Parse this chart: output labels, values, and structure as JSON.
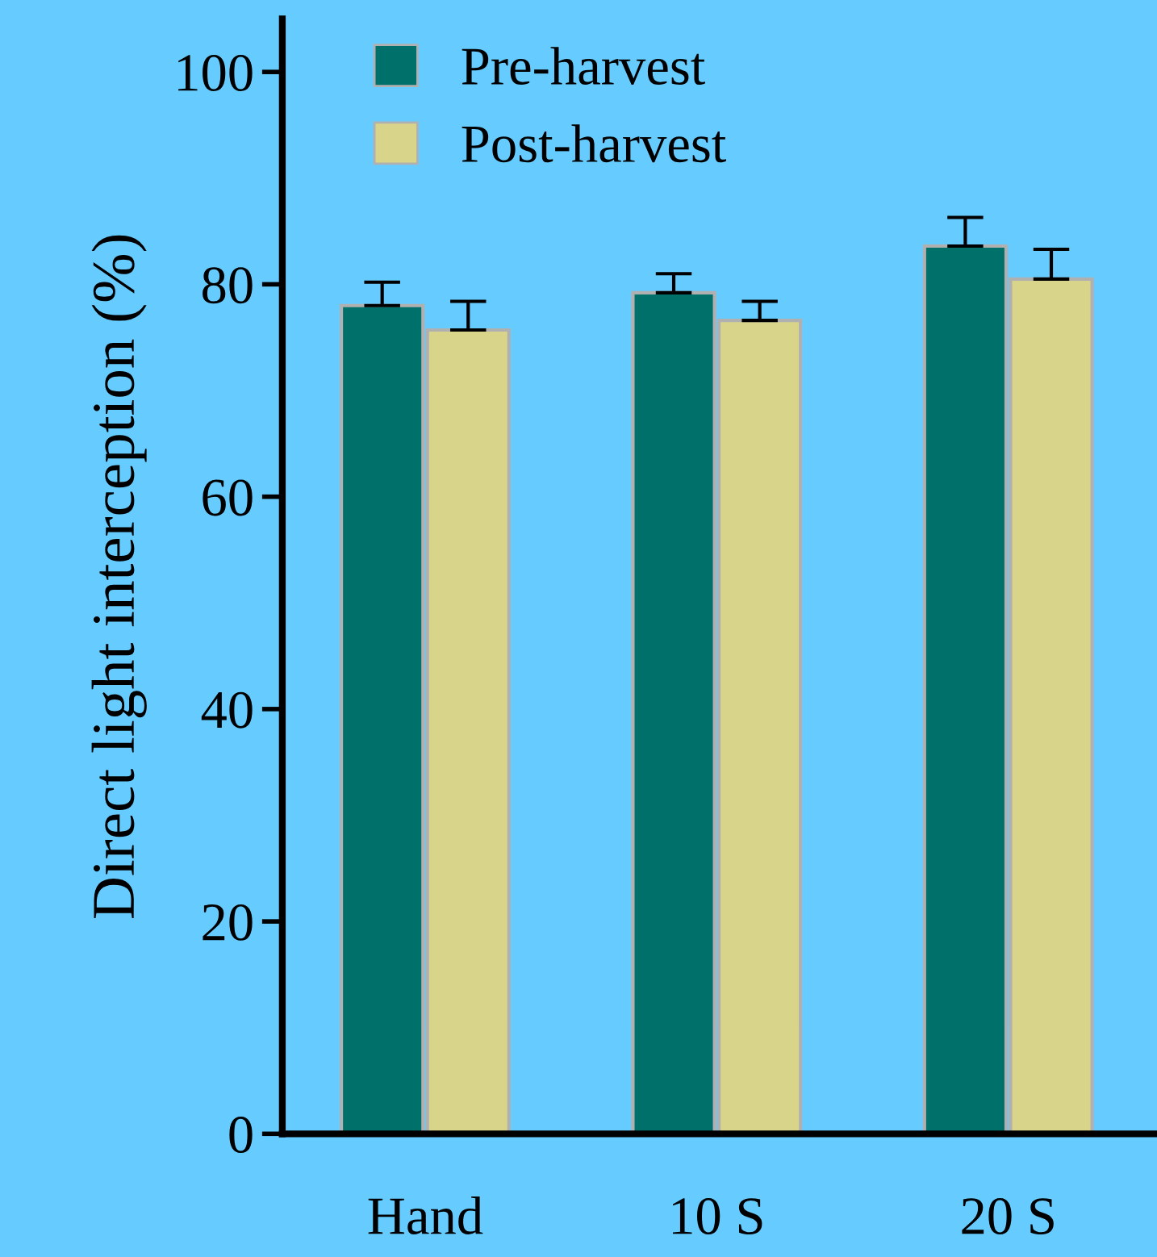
{
  "chart_data": {
    "type": "bar",
    "ylabel": "Direct light interception (%)",
    "categories": [
      "Hand",
      "10 S",
      "20 S"
    ],
    "series": [
      {
        "name": "Pre-harvest",
        "color": "#00706b",
        "values": [
          78.0,
          79.2,
          83.6
        ],
        "errors": [
          2.2,
          1.8,
          2.7
        ]
      },
      {
        "name": "Post-harvest",
        "color": "#d8d48a",
        "values": [
          75.7,
          76.6,
          80.5
        ],
        "errors": [
          2.7,
          1.8,
          2.8
        ]
      }
    ],
    "ylim": [
      0,
      105
    ],
    "yticks": [
      0,
      20,
      40,
      60,
      80,
      100
    ],
    "grid": false,
    "legend": "top left"
  }
}
